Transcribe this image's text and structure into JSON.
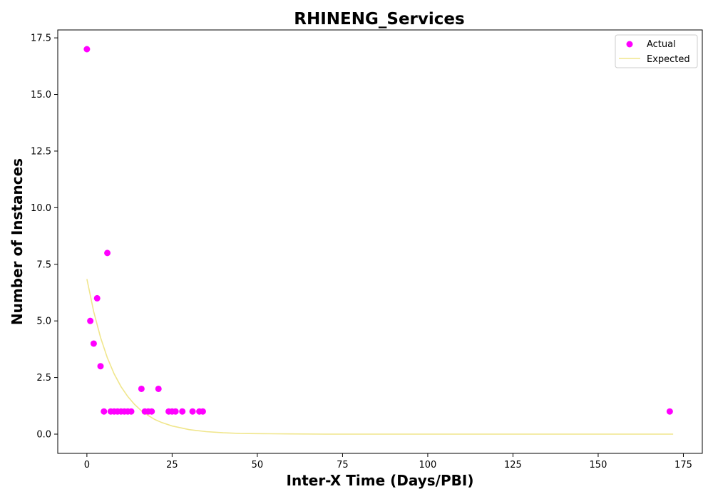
{
  "chart_data": {
    "type": "scatter",
    "title": "RHINENG_Services",
    "xlabel": "Inter-X Time (Days/PBI)",
    "ylabel": "Number of Instances",
    "xlim": [
      -8.55,
      180.55
    ],
    "ylim": [
      -0.85,
      17.85
    ],
    "xticks": [
      0,
      25,
      50,
      75,
      100,
      125,
      150,
      175
    ],
    "xtick_labels": [
      "0",
      "25",
      "50",
      "75",
      "100",
      "125",
      "150",
      "175"
    ],
    "yticks": [
      0,
      2.5,
      5,
      7.5,
      10,
      12.5,
      15,
      17.5
    ],
    "ytick_labels": [
      "0.0",
      "2.5",
      "5.0",
      "7.5",
      "10.0",
      "12.5",
      "15.0",
      "17.5"
    ],
    "grid": false,
    "legend_position": "top-right",
    "series": [
      {
        "name": "Actual",
        "kind": "scatter",
        "color": "#ff00ff",
        "x": [
          0,
          1,
          2,
          3,
          4,
          5,
          6,
          7,
          8,
          9,
          10,
          11,
          12,
          13,
          16,
          17,
          18,
          19,
          21,
          24,
          25,
          26,
          28,
          31,
          33,
          34,
          171
        ],
        "y": [
          17,
          5,
          4,
          6,
          3,
          1,
          8,
          1,
          1,
          1,
          1,
          1,
          1,
          1,
          2,
          1,
          1,
          1,
          2,
          1,
          1,
          1,
          1,
          1,
          1,
          1,
          1
        ]
      },
      {
        "name": "Expected",
        "kind": "line",
        "color": "#f0e68c",
        "x": [
          0,
          2,
          4,
          6,
          8,
          10,
          12,
          14,
          16,
          18,
          20,
          22,
          25,
          30,
          35,
          40,
          45,
          50,
          60,
          70,
          80,
          100,
          125,
          150,
          172
        ],
        "y": [
          6.85,
          5.41,
          4.27,
          3.37,
          2.66,
          2.1,
          1.66,
          1.31,
          1.03,
          0.82,
          0.64,
          0.51,
          0.36,
          0.2,
          0.11,
          0.06,
          0.03,
          0.02,
          0.01,
          0,
          0,
          0,
          0,
          0,
          0
        ]
      }
    ]
  }
}
